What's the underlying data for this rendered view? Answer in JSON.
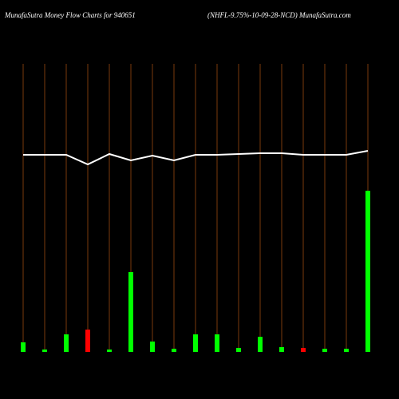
{
  "chart_data": {
    "type": "bar_line",
    "title": "MunafaSutra  Money Flow  Charts for 940651",
    "subtitle": "(NHFL-9.75%-10-09-28-NCD) MunafaSutra.com",
    "categories": [
      null,
      null,
      null,
      null,
      null,
      null,
      null,
      null,
      null,
      null,
      null,
      null,
      null,
      null,
      null,
      null,
      null
    ],
    "series": [
      {
        "name": null,
        "kind": "bar",
        "values": [
          12,
          3,
          22,
          28,
          3,
          100,
          13,
          4,
          22,
          22,
          5,
          19,
          6,
          5,
          4,
          4,
          202
        ],
        "colors": [
          "#00ff00",
          "#00ff00",
          "#00ff00",
          "#ff0000",
          "#00ff00",
          "#00ff00",
          "#00ff00",
          "#00ff00",
          "#00ff00",
          "#00ff00",
          "#00ff00",
          "#00ff00",
          "#00ff00",
          "#ff0000",
          "#00ff00",
          "#00ff00",
          "#00ff00"
        ]
      },
      {
        "name": null,
        "kind": "line",
        "color": "#ffffff",
        "values": [
          247,
          247,
          247,
          235,
          248,
          240,
          246,
          240,
          247,
          247,
          248,
          249,
          249,
          247,
          247,
          247,
          252
        ]
      }
    ]
  }
}
